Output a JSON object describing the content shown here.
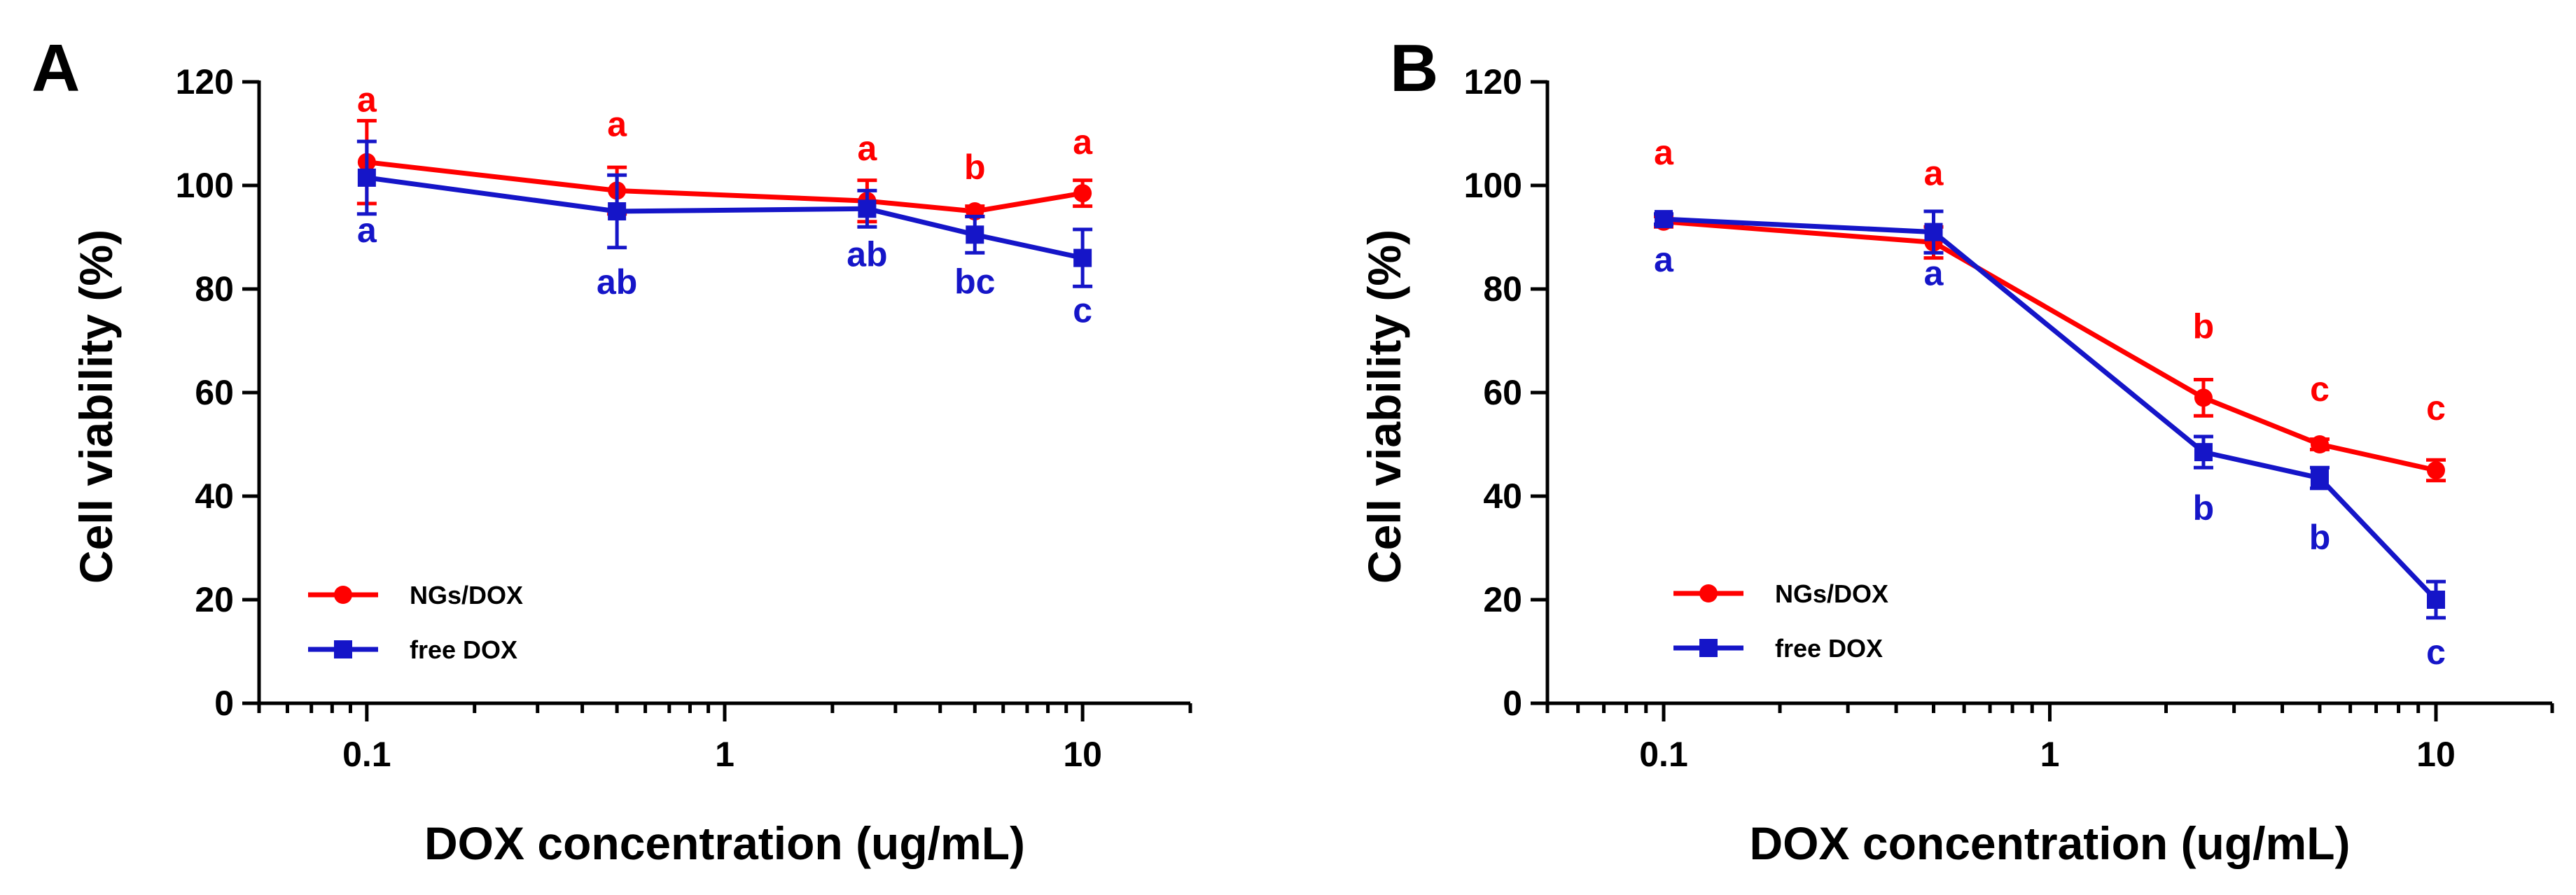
{
  "chart_data": [
    {
      "type": "line",
      "panel": "A",
      "xscale": "log",
      "xlim": [
        0.05,
        20
      ],
      "ylim": [
        0,
        120
      ],
      "xticks": [
        0.1,
        1,
        10
      ],
      "xtick_labels": [
        "0.1",
        "1",
        "10"
      ],
      "yticks": [
        0,
        20,
        40,
        60,
        80,
        100,
        120
      ],
      "ytick_labels": [
        "0",
        "20",
        "40",
        "60",
        "80",
        "100",
        "120"
      ],
      "xlabel": "DOX concentration (ug/mL)",
      "ylabel": "Cell viability (%)",
      "legend_position": "bottom-left",
      "x": [
        0.1,
        0.5,
        2.5,
        5,
        10
      ],
      "series": [
        {
          "name": "NGs/DOX",
          "color": "#ff0000",
          "marker": "circle",
          "values": [
            104.5,
            99,
            97,
            95,
            98.5
          ],
          "errors": [
            8,
            4.5,
            4,
            1,
            2.5
          ],
          "sig_labels": [
            "a",
            "a",
            "a",
            "b",
            "a"
          ]
        },
        {
          "name": "free DOX",
          "color": "#1515c8",
          "marker": "square",
          "values": [
            101.5,
            95,
            95.5,
            90.5,
            86
          ],
          "errors": [
            7,
            7,
            3.5,
            3.5,
            5.5
          ],
          "sig_labels": [
            "a",
            "ab",
            "ab",
            "bc",
            "c"
          ]
        }
      ]
    },
    {
      "type": "line",
      "panel": "B",
      "xscale": "log",
      "xlim": [
        0.05,
        20
      ],
      "ylim": [
        0,
        120
      ],
      "xticks": [
        0.1,
        1,
        10
      ],
      "xtick_labels": [
        "0.1",
        "1",
        "10"
      ],
      "yticks": [
        0,
        20,
        40,
        60,
        80,
        100,
        120
      ],
      "ytick_labels": [
        "0",
        "20",
        "40",
        "60",
        "80",
        "100",
        "120"
      ],
      "xlabel": "DOX concentration (ug/mL)",
      "ylabel": "Cell viability (%)",
      "legend_position": "bottom-left",
      "x": [
        0.1,
        0.5,
        2.5,
        5,
        10
      ],
      "series": [
        {
          "name": "NGs/DOX",
          "color": "#ff0000",
          "marker": "circle",
          "values": [
            93,
            89,
            59,
            50,
            45
          ],
          "errors": [
            1,
            3,
            3.5,
            1,
            2
          ],
          "sig_labels": [
            "a",
            "a",
            "b",
            "c",
            "c"
          ]
        },
        {
          "name": "free DOX",
          "color": "#1515c8",
          "marker": "square",
          "values": [
            93.5,
            91,
            48.5,
            43.5,
            20
          ],
          "errors": [
            1,
            4,
            3,
            2,
            3.5
          ],
          "sig_labels": [
            "a",
            "a",
            "b",
            "b",
            "c"
          ]
        }
      ]
    }
  ]
}
